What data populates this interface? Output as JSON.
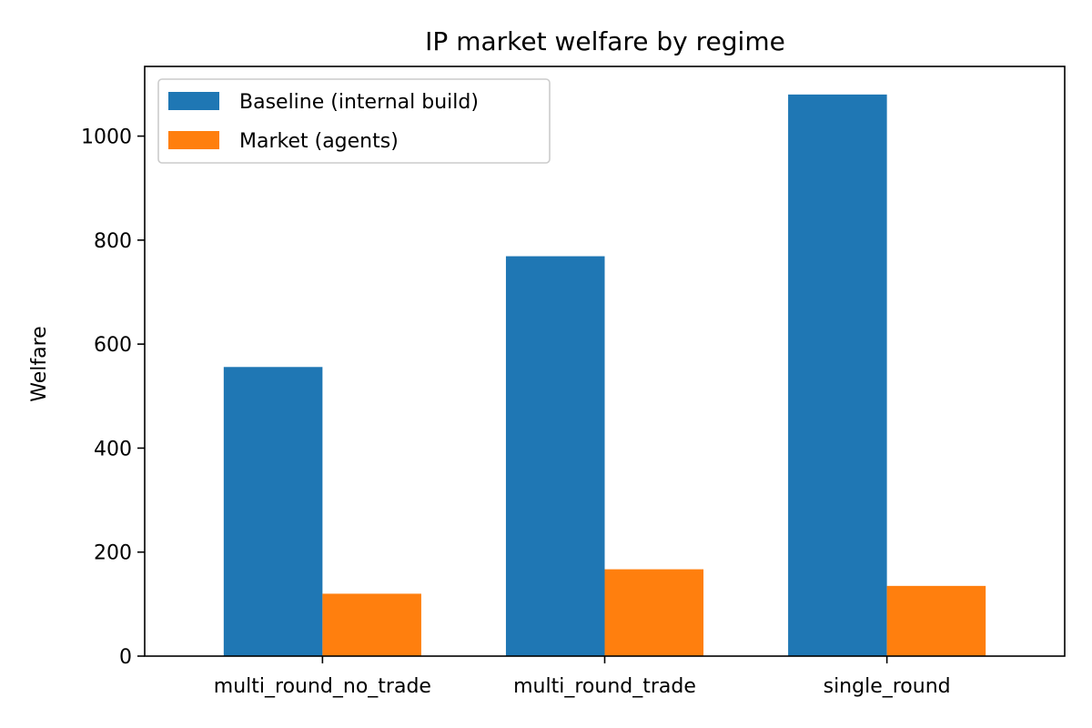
{
  "chart_data": {
    "type": "bar",
    "title": "IP market welfare by regime",
    "xlabel": "",
    "ylabel": "Welfare",
    "categories": [
      "multi_round_no_trade",
      "multi_round_trade",
      "single_round"
    ],
    "series": [
      {
        "name": "Baseline (internal build)",
        "color": "#1f77b4",
        "values": [
          556,
          769,
          1080
        ]
      },
      {
        "name": "Market (agents)",
        "color": "#ff7f0e",
        "values": [
          120,
          167,
          135
        ]
      }
    ],
    "ylim": [
      0,
      1134
    ],
    "yticks": [
      0,
      200,
      400,
      600,
      800,
      1000
    ],
    "grid": false,
    "legend_position": "top-left"
  }
}
